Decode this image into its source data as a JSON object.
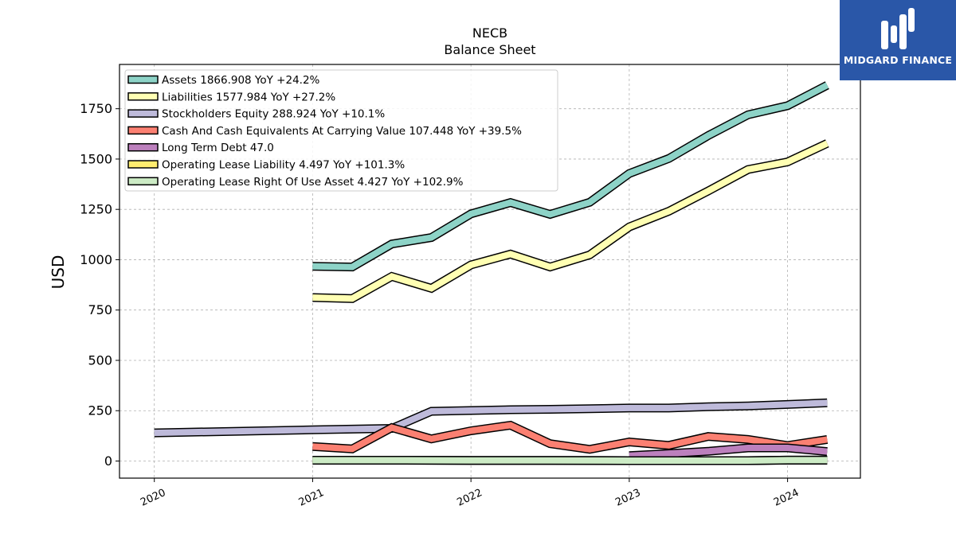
{
  "brand": {
    "name": "MIDGARD FINANCE",
    "color": "#2a57a8"
  },
  "chart_data": {
    "type": "line",
    "title": "NECB",
    "subtitle": "Balance  Sheet",
    "ylabel": "USD",
    "xlabel": "",
    "xlim": [
      2019.78,
      2024.46
    ],
    "ylim": [
      -85,
      1970
    ],
    "yticks": [
      0,
      250,
      500,
      750,
      1000,
      1250,
      1500,
      1750
    ],
    "xticks": [
      "2020",
      "2021",
      "2022",
      "2023",
      "2024"
    ],
    "grid": true,
    "legend_position": "top-left",
    "series": [
      {
        "name": "Assets",
        "legend_label": "Assets  1866.908 YoY +24.2%",
        "color": "#8dd3c7",
        "x": [
          2021.0,
          2021.25,
          2021.5,
          2021.75,
          2022.0,
          2022.25,
          2022.5,
          2022.75,
          2023.0,
          2023.25,
          2023.5,
          2023.75,
          2024.0,
          2024.25
        ],
        "values": [
          967,
          964,
          1078,
          1110,
          1228,
          1284,
          1225,
          1285,
          1428,
          1503,
          1617,
          1720,
          1765,
          1867
        ]
      },
      {
        "name": "Liabilities",
        "legend_label": "Liabilities  1577.984 YoY +27.2%",
        "color": "#ffffb3",
        "x": [
          2021.0,
          2021.25,
          2021.5,
          2021.75,
          2022.0,
          2022.25,
          2022.5,
          2022.75,
          2023.0,
          2023.25,
          2023.5,
          2023.75,
          2024.0,
          2024.25
        ],
        "values": [
          812,
          807,
          917,
          858,
          974,
          1028,
          964,
          1024,
          1163,
          1241,
          1342,
          1448,
          1486,
          1578
        ]
      },
      {
        "name": "Stockholders Equity",
        "legend_label": "Stockholders Equity  288.924 YoY +10.1%",
        "color": "#bebada",
        "x": [
          2020.0,
          2021.0,
          2021.5,
          2021.75,
          2022.0,
          2022.25,
          2022.5,
          2022.75,
          2023.0,
          2023.25,
          2023.5,
          2023.75,
          2024.0,
          2024.25
        ],
        "values": [
          140,
          155,
          162,
          247,
          251,
          255,
          257,
          260,
          263,
          263,
          270,
          274,
          281,
          289
        ]
      },
      {
        "name": "Cash And Cash Equivalents At Carrying Value",
        "legend_label": "Cash And Cash Equivalents At Carrying Value  107.448 YoY +39.5%",
        "color": "#fb8072",
        "x": [
          2021.0,
          2021.25,
          2021.5,
          2021.75,
          2022.0,
          2022.25,
          2022.5,
          2022.75,
          2023.0,
          2023.25,
          2023.5,
          2023.75,
          2024.0,
          2024.25
        ],
        "values": [
          72,
          60,
          166,
          110,
          150,
          178,
          86,
          58,
          95,
          78,
          122,
          107,
          77,
          107
        ]
      },
      {
        "name": "Long Term Debt",
        "legend_label": "Long Term Debt  47.0",
        "color": "#bc80bd",
        "x": [
          2023.0,
          2023.25,
          2023.5,
          2023.75,
          2024.0,
          2024.25
        ],
        "values": [
          27,
          37,
          48,
          65,
          65,
          47
        ]
      },
      {
        "name": "Operating Lease Liability",
        "legend_label": "Operating Lease Liability  4.497 YoY +101.3%",
        "color": "#ffed6f",
        "x": [
          2021.0,
          2021.5,
          2022.0,
          2022.5,
          2023.0,
          2023.5,
          2023.75,
          2024.0,
          2024.25
        ],
        "values": [
          4,
          4,
          3,
          3,
          2,
          2,
          2,
          4.5,
          4.5
        ]
      },
      {
        "name": "Operating Lease Right Of Use Asset",
        "legend_label": "Operating Lease Right Of Use Asset  4.427 YoY +102.9%",
        "color": "#ccebc5",
        "x": [
          2021.0,
          2021.5,
          2022.0,
          2022.5,
          2023.0,
          2023.5,
          2023.75,
          2024.0,
          2024.25
        ],
        "values": [
          4,
          4,
          3,
          3,
          2,
          2,
          2,
          4.4,
          4.4
        ]
      }
    ]
  }
}
